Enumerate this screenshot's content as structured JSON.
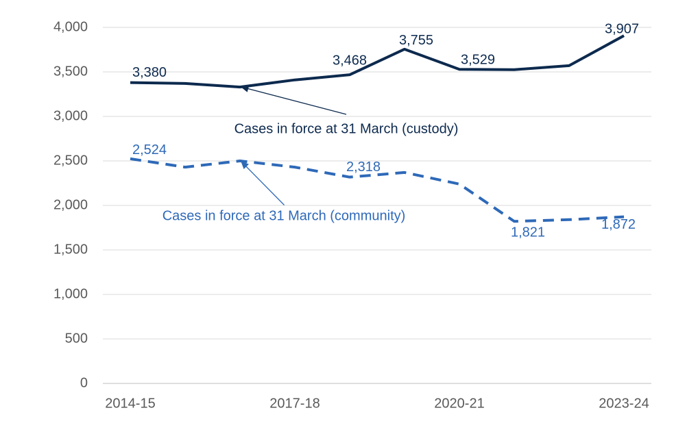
{
  "chart_data": {
    "type": "line",
    "categories": [
      "2014-15",
      null,
      null,
      "2017-18",
      null,
      null,
      "2020-21",
      null,
      null,
      "2023-24"
    ],
    "series": [
      {
        "name": "Cases in force at 31 March (custody)",
        "color": "#0d2a4e",
        "dashed": false,
        "values": [
          3380,
          3370,
          3330,
          3410,
          3468,
          3755,
          3529,
          3525,
          3570,
          3907
        ],
        "value_labels": [
          "3,380",
          null,
          null,
          null,
          "3,468",
          "3,755",
          "3,529",
          null,
          null,
          "3,907"
        ]
      },
      {
        "name": "Cases in force at 31 March (community)",
        "color": "#2e69b8",
        "dashed": true,
        "values": [
          2524,
          2430,
          2500,
          2430,
          2318,
          2370,
          2240,
          1821,
          1840,
          1872
        ],
        "value_labels": [
          "2,524",
          null,
          null,
          null,
          "2,318",
          null,
          null,
          "1,821",
          null,
          "1,872"
        ]
      }
    ],
    "ylim": [
      0,
      4000
    ],
    "yticks": [
      0,
      500,
      {
        "value": 1000,
        "label": "1,000"
      },
      {
        "value": 1500,
        "label": "1,500"
      },
      {
        "value": 2000,
        "label": "2,000"
      },
      {
        "value": 2500,
        "label": "2,500"
      },
      {
        "value": 3000,
        "label": "3,000"
      },
      {
        "value": 3500,
        "label": "3,500"
      },
      {
        "value": 4000,
        "label": "4,000"
      }
    ],
    "grid": true
  }
}
